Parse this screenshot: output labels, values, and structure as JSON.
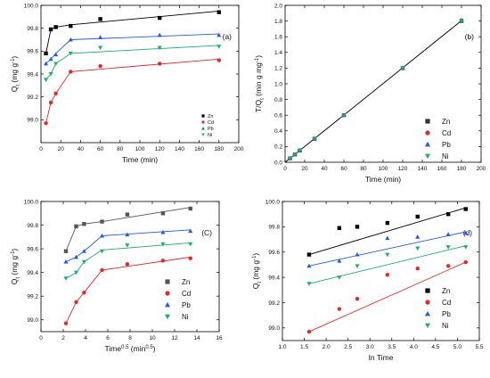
{
  "figure": {
    "panels_order": [
      "a",
      "b",
      "c",
      "d"
    ]
  },
  "chart_data": [
    {
      "id": "a",
      "type": "scatter",
      "panel_label": "(a)",
      "xlabel": "Time (min)",
      "ylabel": "Q",
      "ylabel_sub": "t",
      "ylabel_unit": "(mg g",
      "ylabel_unit_sup": "-1",
      "ylabel_unit_end": ")",
      "xlim": [
        0,
        200
      ],
      "ylim": [
        98.8,
        100.0
      ],
      "xticks": [
        0,
        20,
        40,
        60,
        80,
        100,
        120,
        140,
        160,
        180,
        200
      ],
      "yticks": [
        99.0,
        99.2,
        99.4,
        99.6,
        99.8,
        100.0
      ],
      "xtick_labels": [
        "0",
        "20",
        "40",
        "60",
        "80",
        "100",
        "120",
        "140",
        "160",
        "180",
        "200"
      ],
      "ytick_labels": [
        "99.0",
        "99.2",
        "99.4",
        "99.6",
        "99.8",
        "100.0"
      ],
      "legend_position": "center-right",
      "legend_size": "small",
      "series": [
        {
          "name": "Zn",
          "color": "#000000",
          "marker": "square",
          "points": [
            [
              5,
              99.58
            ],
            [
              10,
              99.79
            ],
            [
              15,
              99.81
            ],
            [
              30,
              99.82
            ],
            [
              60,
              99.88
            ],
            [
              120,
              99.89
            ],
            [
              180,
              99.94
            ]
          ],
          "fit": [
            [
              5,
              99.58
            ],
            [
              10,
              99.79
            ],
            [
              15,
              99.81
            ],
            [
              30,
              99.83
            ],
            [
              180,
              99.95
            ]
          ]
        },
        {
          "name": "Cd",
          "color": "#e8262a",
          "marker": "circle",
          "points": [
            [
              5,
              98.97
            ],
            [
              10,
              99.15
            ],
            [
              15,
              99.23
            ],
            [
              30,
              99.42
            ],
            [
              60,
              99.47
            ],
            [
              120,
              99.49
            ],
            [
              180,
              99.52
            ]
          ],
          "fit": [
            [
              5,
              98.97
            ],
            [
              10,
              99.15
            ],
            [
              15,
              99.23
            ],
            [
              30,
              99.42
            ],
            [
              180,
              99.53
            ]
          ]
        },
        {
          "name": "Pb",
          "color": "#1f5be8",
          "marker": "triangle-up",
          "points": [
            [
              5,
              99.49
            ],
            [
              10,
              99.53
            ],
            [
              15,
              99.57
            ],
            [
              30,
              99.7
            ],
            [
              60,
              99.72
            ],
            [
              120,
              99.74
            ],
            [
              180,
              99.74
            ]
          ],
          "fit": [
            [
              5,
              99.49
            ],
            [
              10,
              99.53
            ],
            [
              15,
              99.58
            ],
            [
              30,
              99.7
            ],
            [
              180,
              99.75
            ]
          ]
        },
        {
          "name": "Ni",
          "color": "#18b06a",
          "marker": "triangle-down",
          "points": [
            [
              5,
              99.35
            ],
            [
              10,
              99.4
            ],
            [
              15,
              99.49
            ],
            [
              30,
              99.58
            ],
            [
              60,
              99.63
            ],
            [
              120,
              99.63
            ],
            [
              180,
              99.64
            ]
          ],
          "fit": [
            [
              5,
              99.35
            ],
            [
              10,
              99.4
            ],
            [
              15,
              99.49
            ],
            [
              30,
              99.58
            ],
            [
              180,
              99.65
            ]
          ]
        }
      ]
    },
    {
      "id": "b",
      "type": "scatter",
      "panel_label": "(b)",
      "xlabel": "Time (min)",
      "ylabel": "T/Q",
      "ylabel_sub": "t",
      "ylabel_unit": "(min g mg",
      "ylabel_unit_sup": "-1",
      "ylabel_unit_end": ")",
      "xlim": [
        0,
        200
      ],
      "ylim": [
        0.0,
        2.0
      ],
      "xticks": [
        0,
        20,
        40,
        60,
        80,
        100,
        120,
        140,
        160,
        180,
        200
      ],
      "yticks": [
        0.0,
        0.2,
        0.4,
        0.6,
        0.8,
        1.0,
        1.2,
        1.4,
        1.6,
        1.8,
        2.0
      ],
      "xtick_labels": [
        "0",
        "20",
        "40",
        "60",
        "80",
        "100",
        "120",
        "140",
        "160",
        "180",
        "200"
      ],
      "ytick_labels": [
        "0.0",
        "0.2",
        "0.4",
        "0.6",
        "0.8",
        "1.0",
        "1.2",
        "1.4",
        "1.6",
        "1.8",
        "2.0"
      ],
      "legend_position": "center-right",
      "legend_size": "large",
      "fit_line": [
        [
          0,
          0.0
        ],
        [
          180,
          1.805
        ]
      ],
      "series": [
        {
          "name": "Zn",
          "color": "#333333",
          "marker": "square",
          "points": [
            [
              5,
              0.05
            ],
            [
              10,
              0.1
            ],
            [
              15,
              0.15
            ],
            [
              30,
              0.3
            ],
            [
              60,
              0.6
            ],
            [
              120,
              1.2
            ],
            [
              180,
              1.8
            ]
          ]
        },
        {
          "name": "Cd",
          "color": "#e8262a",
          "marker": "circle",
          "points": [
            [
              5,
              0.05
            ],
            [
              10,
              0.1
            ],
            [
              15,
              0.15
            ],
            [
              30,
              0.3
            ],
            [
              60,
              0.6
            ],
            [
              120,
              1.2
            ],
            [
              180,
              1.81
            ]
          ]
        },
        {
          "name": "Pb",
          "color": "#1f5be8",
          "marker": "triangle-up",
          "points": [
            [
              5,
              0.05
            ],
            [
              10,
              0.1
            ],
            [
              15,
              0.15
            ],
            [
              30,
              0.3
            ],
            [
              60,
              0.6
            ],
            [
              120,
              1.2
            ],
            [
              180,
              1.8
            ]
          ]
        },
        {
          "name": "Ni",
          "color": "#18b06a",
          "marker": "triangle-down",
          "points": [
            [
              5,
              0.05
            ],
            [
              10,
              0.1
            ],
            [
              15,
              0.15
            ],
            [
              30,
              0.3
            ],
            [
              60,
              0.6
            ],
            [
              120,
              1.2
            ],
            [
              180,
              1.8
            ]
          ]
        }
      ]
    },
    {
      "id": "c",
      "type": "scatter",
      "panel_label": "(C)",
      "xlabel": "Time",
      "xlabel_sup": "0.5",
      "xlabel_unit": "(min",
      "xlabel_unit_sup": "0.5",
      "xlabel_unit_end": ")",
      "ylabel": "Q",
      "ylabel_sub": "t",
      "ylabel_unit": "(mg g",
      "ylabel_unit_sup": "-1",
      "ylabel_unit_end": ")",
      "xlim": [
        0,
        16
      ],
      "ylim": [
        98.9,
        100.0
      ],
      "xticks": [
        0,
        2,
        4,
        6,
        8,
        10,
        12,
        14,
        16
      ],
      "yticks": [
        99.0,
        99.2,
        99.4,
        99.6,
        99.8,
        100.0
      ],
      "xtick_labels": [
        "0",
        "2",
        "4",
        "6",
        "8",
        "10",
        "12",
        "14",
        "16"
      ],
      "ytick_labels": [
        "99.0",
        "99.2",
        "99.4",
        "99.6",
        "99.8",
        "100.0"
      ],
      "legend_position": "bottom-right",
      "legend_size": "large",
      "series": [
        {
          "name": "Zn",
          "color": "#555555",
          "marker": "square",
          "points": [
            [
              2.24,
              99.58
            ],
            [
              3.16,
              99.79
            ],
            [
              3.87,
              99.81
            ],
            [
              5.48,
              99.83
            ],
            [
              7.75,
              99.89
            ],
            [
              10.95,
              99.9
            ],
            [
              13.42,
              99.94
            ]
          ],
          "fit": [
            [
              2.24,
              99.58
            ],
            [
              3.16,
              99.79
            ],
            [
              3.87,
              99.81
            ],
            [
              5.48,
              99.83
            ],
            [
              13.42,
              99.95
            ]
          ]
        },
        {
          "name": "Cd",
          "color": "#e8262a",
          "marker": "circle",
          "points": [
            [
              2.24,
              98.97
            ],
            [
              3.16,
              99.15
            ],
            [
              3.87,
              99.23
            ],
            [
              5.48,
              99.42
            ],
            [
              7.75,
              99.47
            ],
            [
              10.95,
              99.5
            ],
            [
              13.42,
              99.52
            ]
          ],
          "fit": [
            [
              2.24,
              98.97
            ],
            [
              3.16,
              99.15
            ],
            [
              3.87,
              99.23
            ],
            [
              5.48,
              99.42
            ],
            [
              13.42,
              99.53
            ]
          ]
        },
        {
          "name": "Pb",
          "color": "#1f5be8",
          "marker": "triangle-up",
          "points": [
            [
              2.24,
              99.49
            ],
            [
              3.16,
              99.53
            ],
            [
              3.87,
              99.58
            ],
            [
              5.48,
              99.71
            ],
            [
              7.75,
              99.72
            ],
            [
              10.95,
              99.74
            ],
            [
              13.42,
              99.75
            ]
          ],
          "fit": [
            [
              2.24,
              99.49
            ],
            [
              3.16,
              99.53
            ],
            [
              3.87,
              99.58
            ],
            [
              5.48,
              99.71
            ],
            [
              13.42,
              99.76
            ]
          ]
        },
        {
          "name": "Ni",
          "color": "#18b06a",
          "marker": "triangle-down",
          "points": [
            [
              2.24,
              99.35
            ],
            [
              3.16,
              99.4
            ],
            [
              3.87,
              99.49
            ],
            [
              5.48,
              99.58
            ],
            [
              7.75,
              99.63
            ],
            [
              10.95,
              99.64
            ],
            [
              13.42,
              99.64
            ]
          ],
          "fit": [
            [
              2.24,
              99.35
            ],
            [
              3.16,
              99.4
            ],
            [
              3.87,
              99.49
            ],
            [
              5.48,
              99.59
            ],
            [
              13.42,
              99.65
            ]
          ]
        }
      ]
    },
    {
      "id": "d",
      "type": "scatter",
      "panel_label": "(d)",
      "xlabel": "In Time",
      "ylabel": "Q",
      "ylabel_sub": "t",
      "ylabel_unit": "(mg g",
      "ylabel_unit_sup": "-1",
      "ylabel_unit_end": ")",
      "xlim": [
        1.0,
        5.5
      ],
      "ylim": [
        98.9,
        100.0
      ],
      "xticks": [
        1.0,
        1.5,
        2.0,
        2.5,
        3.0,
        3.5,
        4.0,
        4.5,
        5.0,
        5.5
      ],
      "yticks": [
        99.0,
        99.2,
        99.4,
        99.6,
        99.8,
        100.0
      ],
      "xtick_labels": [
        "1.0",
        "1.5",
        "2.0",
        "2.5",
        "3.0",
        "3.5",
        "4.0",
        "4.5",
        "5.0",
        "5.5"
      ],
      "ytick_labels": [
        "99.0",
        "99.2",
        "99.4",
        "99.6",
        "99.8",
        "100.0"
      ],
      "legend_position": "bottom-right",
      "legend_size": "large",
      "series": [
        {
          "name": "Zn",
          "color": "#000000",
          "marker": "square",
          "points": [
            [
              1.61,
              99.58
            ],
            [
              2.3,
              99.79
            ],
            [
              2.71,
              99.8
            ],
            [
              3.4,
              99.83
            ],
            [
              4.09,
              99.88
            ],
            [
              4.79,
              99.9
            ],
            [
              5.19,
              99.94
            ]
          ],
          "fit": [
            [
              1.61,
              99.58
            ],
            [
              5.19,
              99.95
            ]
          ]
        },
        {
          "name": "Cd",
          "color": "#e8262a",
          "marker": "circle",
          "points": [
            [
              1.61,
              98.97
            ],
            [
              2.3,
              99.15
            ],
            [
              2.71,
              99.23
            ],
            [
              3.4,
              99.42
            ],
            [
              4.09,
              99.47
            ],
            [
              4.79,
              99.49
            ],
            [
              5.19,
              99.52
            ]
          ],
          "fit": [
            [
              1.61,
              98.97
            ],
            [
              5.19,
              99.52
            ]
          ]
        },
        {
          "name": "Pb",
          "color": "#1f5be8",
          "marker": "triangle-up",
          "points": [
            [
              1.61,
              99.49
            ],
            [
              2.3,
              99.53
            ],
            [
              2.71,
              99.58
            ],
            [
              3.4,
              99.71
            ],
            [
              4.09,
              99.72
            ],
            [
              4.79,
              99.74
            ],
            [
              5.19,
              99.75
            ]
          ],
          "fit": [
            [
              1.61,
              99.49
            ],
            [
              5.19,
              99.76
            ]
          ]
        },
        {
          "name": "Ni",
          "color": "#18b06a",
          "marker": "triangle-down",
          "points": [
            [
              1.61,
              99.35
            ],
            [
              2.3,
              99.4
            ],
            [
              2.71,
              99.49
            ],
            [
              3.4,
              99.58
            ],
            [
              4.09,
              99.63
            ],
            [
              4.79,
              99.64
            ],
            [
              5.19,
              99.64
            ]
          ],
          "fit": [
            [
              1.61,
              99.35
            ],
            [
              5.19,
              99.65
            ]
          ]
        }
      ]
    }
  ]
}
